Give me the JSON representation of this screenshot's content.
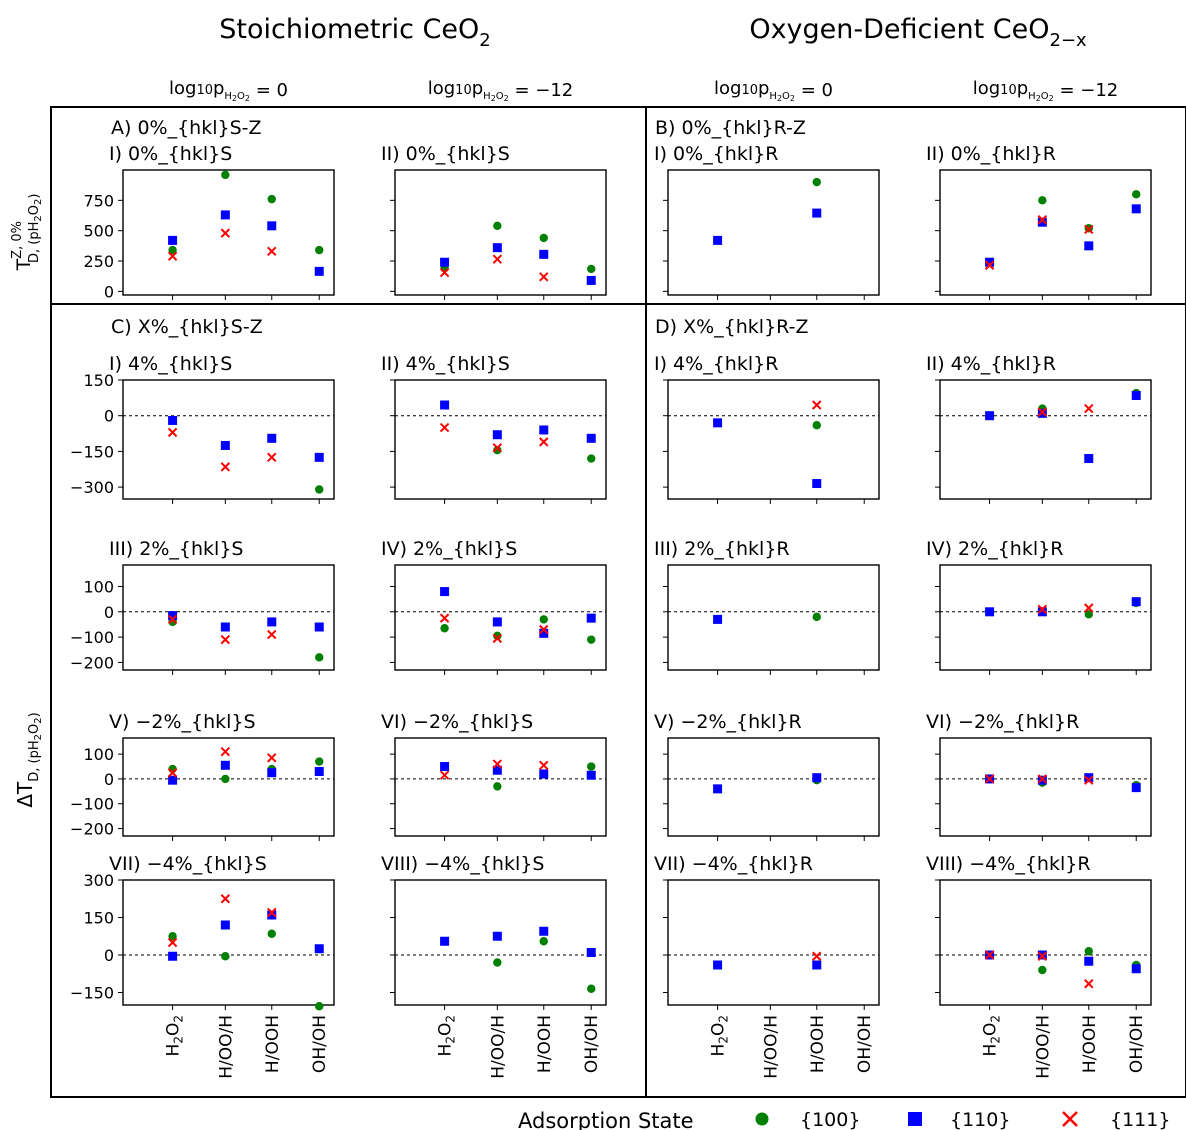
{
  "header": {
    "left": {
      "title_main": "Stoichiometric CeO",
      "title_sub": "2"
    },
    "right": {
      "title_main": "Oxygen-Deficient CeO",
      "title_sub": "2−x"
    }
  },
  "column_headers": [
    {
      "pre": "log",
      "base": "10",
      "p": "p",
      "sub": "H",
      "sub2": "2",
      "sub3": "O",
      "sub4": "2",
      "eq": " = 0"
    },
    {
      "pre": "log",
      "base": "10",
      "p": "p",
      "sub": "H",
      "sub2": "2",
      "sub3": "O",
      "sub4": "2",
      "eq": " = −12"
    },
    {
      "pre": "log",
      "base": "10",
      "p": "p",
      "sub": "H",
      "sub2": "2",
      "sub3": "O",
      "sub4": "2",
      "eq": " = 0"
    },
    {
      "pre": "log",
      "base": "10",
      "p": "p",
      "sub": "H",
      "sub2": "2",
      "sub3": "O",
      "sub4": "2",
      "eq": " = −12"
    }
  ],
  "section_labels": {
    "A": "A) 0%_{hkl}S-Z",
    "B": "B) 0%_{hkl}R-Z",
    "C": "C) X%_{hkl}S-Z",
    "D": "D) X%_{hkl}R-Z"
  },
  "ylabels": {
    "top": {
      "main": "T",
      "sup": "Z, 0%",
      "sub": "D, (pH",
      "sub2": "2",
      "sub3": "O",
      "sub4": "2",
      "close": ")"
    },
    "bottom": {
      "main": "ΔT",
      "sub": "D, (pH",
      "sub2": "2",
      "sub3": "O",
      "sub4": "2",
      "close": ")"
    }
  },
  "categories": [
    "H2O2",
    "H/OO/H",
    "H/OOH",
    "OH/OH"
  ],
  "legend": {
    "title": "Adsorption State",
    "items": [
      {
        "label": "{100}",
        "color": "#008000",
        "marker": "circle"
      },
      {
        "label": "{110}",
        "color": "#0000ff",
        "marker": "square"
      },
      {
        "label": "{111}",
        "color": "#ff0000",
        "marker": "x"
      }
    ]
  },
  "colors": {
    "s100": "#008000",
    "s110": "#0000ff",
    "s111": "#ff0000"
  },
  "chart_data": [
    {
      "type": "scatter",
      "title": "I) 0%_{hkl}S",
      "yticks": [
        0,
        250,
        500,
        750
      ],
      "ylim": [
        -30,
        1000
      ],
      "series": [
        {
          "name": "{100}",
          "values": [
            340,
            960,
            760,
            340
          ]
        },
        {
          "name": "{110}",
          "values": [
            420,
            630,
            540,
            165
          ]
        },
        {
          "name": "{111}",
          "values": [
            290,
            480,
            330,
            null
          ]
        }
      ]
    },
    {
      "type": "scatter",
      "title": "II) 0%_{hkl}S",
      "yticks": [],
      "ylim": [
        -30,
        1000
      ],
      "series": [
        {
          "name": "{100}",
          "values": [
            190,
            540,
            440,
            185
          ]
        },
        {
          "name": "{110}",
          "values": [
            240,
            360,
            305,
            90
          ]
        },
        {
          "name": "{111}",
          "values": [
            155,
            265,
            120,
            null
          ]
        }
      ]
    },
    {
      "type": "scatter",
      "title": "I) 0%_{hkl}R",
      "yticks": [],
      "ylim": [
        -30,
        1000
      ],
      "series": [
        {
          "name": "{100}",
          "values": [
            null,
            null,
            900,
            null
          ]
        },
        {
          "name": "{110}",
          "values": [
            420,
            null,
            645,
            null
          ]
        },
        {
          "name": "{111}",
          "values": [
            null,
            null,
            null,
            null
          ]
        }
      ]
    },
    {
      "type": "scatter",
      "title": "II) 0%_{hkl}R",
      "yticks": [],
      "ylim": [
        -30,
        1000
      ],
      "series": [
        {
          "name": "{100}",
          "values": [
            null,
            750,
            520,
            800
          ]
        },
        {
          "name": "{110}",
          "values": [
            240,
            570,
            375,
            680
          ]
        },
        {
          "name": "{111}",
          "values": [
            215,
            590,
            510,
            null
          ]
        }
      ]
    },
    {
      "type": "scatter",
      "title": "I)  4%_{hkl}S",
      "yticks": [
        -300,
        -150,
        0,
        150
      ],
      "ylim": [
        -350,
        150
      ],
      "series": [
        {
          "name": "{100}",
          "values": [
            null,
            null,
            null,
            -310
          ]
        },
        {
          "name": "{110}",
          "values": [
            -20,
            -125,
            -95,
            -175
          ]
        },
        {
          "name": "{111}",
          "values": [
            -70,
            -215,
            -175,
            null
          ]
        }
      ]
    },
    {
      "type": "scatter",
      "title": "II) 4%_{hkl}S",
      "yticks": [],
      "ylim": [
        -350,
        150
      ],
      "series": [
        {
          "name": "{100}",
          "values": [
            null,
            -145,
            null,
            -180
          ]
        },
        {
          "name": "{110}",
          "values": [
            45,
            -80,
            -60,
            -95
          ]
        },
        {
          "name": "{111}",
          "values": [
            -50,
            -135,
            -110,
            null
          ]
        }
      ]
    },
    {
      "type": "scatter",
      "title": "I)  4%_{hkl}R",
      "yticks": [],
      "ylim": [
        -350,
        150
      ],
      "series": [
        {
          "name": "{100}",
          "values": [
            null,
            null,
            -40,
            null
          ]
        },
        {
          "name": "{110}",
          "values": [
            -30,
            null,
            -285,
            null
          ]
        },
        {
          "name": "{111}",
          "values": [
            null,
            null,
            45,
            null
          ]
        }
      ]
    },
    {
      "type": "scatter",
      "title": "II) 4%_{hkl}R",
      "yticks": [],
      "ylim": [
        -350,
        150
      ],
      "series": [
        {
          "name": "{100}",
          "values": [
            null,
            30,
            null,
            95
          ]
        },
        {
          "name": "{110}",
          "values": [
            0,
            10,
            -180,
            85
          ]
        },
        {
          "name": "{111}",
          "values": [
            null,
            15,
            30,
            null
          ]
        }
      ]
    },
    {
      "type": "scatter",
      "title": "III) 2%_{hkl}S",
      "yticks": [
        -200,
        -100,
        0,
        100
      ],
      "ylim": [
        -230,
        185
      ],
      "series": [
        {
          "name": "{100}",
          "values": [
            -40,
            null,
            -40,
            -180
          ]
        },
        {
          "name": "{110}",
          "values": [
            -15,
            -60,
            -40,
            -60
          ]
        },
        {
          "name": "{111}",
          "values": [
            -30,
            -110,
            -90,
            null
          ]
        }
      ]
    },
    {
      "type": "scatter",
      "title": "IV) 2%_{hkl}S",
      "yticks": [],
      "ylim": [
        -230,
        185
      ],
      "series": [
        {
          "name": "{100}",
          "values": [
            -65,
            -95,
            -30,
            -110
          ]
        },
        {
          "name": "{110}",
          "values": [
            80,
            -40,
            -85,
            -25
          ]
        },
        {
          "name": "{111}",
          "values": [
            -25,
            -105,
            -70,
            null
          ]
        }
      ]
    },
    {
      "type": "scatter",
      "title": "III) 2%_{hkl}R",
      "yticks": [],
      "ylim": [
        -230,
        185
      ],
      "series": [
        {
          "name": "{100}",
          "values": [
            null,
            null,
            -20,
            null
          ]
        },
        {
          "name": "{110}",
          "values": [
            -30,
            null,
            null,
            null
          ]
        },
        {
          "name": "{111}",
          "values": [
            null,
            null,
            null,
            null
          ]
        }
      ]
    },
    {
      "type": "scatter",
      "title": "IV) 2%_{hkl}R",
      "yticks": [],
      "ylim": [
        -230,
        185
      ],
      "series": [
        {
          "name": "{100}",
          "values": [
            null,
            0,
            -10,
            35
          ]
        },
        {
          "name": "{110}",
          "values": [
            0,
            0,
            null,
            40
          ]
        },
        {
          "name": "{111}",
          "values": [
            null,
            10,
            15,
            null
          ]
        }
      ]
    },
    {
      "type": "scatter",
      "title": "V) −2%_{hkl}S",
      "yticks": [
        -200,
        -100,
        0,
        100
      ],
      "ylim": [
        -230,
        165
      ],
      "series": [
        {
          "name": "{100}",
          "values": [
            40,
            0,
            40,
            70
          ]
        },
        {
          "name": "{110}",
          "values": [
            -5,
            55,
            25,
            30
          ]
        },
        {
          "name": "{111}",
          "values": [
            25,
            110,
            85,
            null
          ]
        }
      ]
    },
    {
      "type": "scatter",
      "title": "VI) −2%_{hkl}S",
      "yticks": [],
      "ylim": [
        -230,
        165
      ],
      "series": [
        {
          "name": "{100}",
          "values": [
            null,
            -30,
            null,
            50
          ]
        },
        {
          "name": "{110}",
          "values": [
            50,
            35,
            20,
            15
          ]
        },
        {
          "name": "{111}",
          "values": [
            15,
            60,
            55,
            null
          ]
        }
      ]
    },
    {
      "type": "scatter",
      "title": "V) −2%_{hkl}R",
      "yticks": [],
      "ylim": [
        -230,
        165
      ],
      "series": [
        {
          "name": "{100}",
          "values": [
            null,
            null,
            -5,
            null
          ]
        },
        {
          "name": "{110}",
          "values": [
            -40,
            null,
            5,
            null
          ]
        },
        {
          "name": "{111}",
          "values": [
            null,
            null,
            null,
            null
          ]
        }
      ]
    },
    {
      "type": "scatter",
      "title": "VI) −2%_{hkl}R",
      "yticks": [],
      "ylim": [
        -230,
        165
      ],
      "series": [
        {
          "name": "{100}",
          "values": [
            null,
            -15,
            null,
            -25
          ]
        },
        {
          "name": "{110}",
          "values": [
            0,
            -5,
            5,
            -35
          ]
        },
        {
          "name": "{111}",
          "values": [
            0,
            0,
            -5,
            null
          ]
        }
      ]
    },
    {
      "type": "scatter",
      "title": "VII) −4%_{hkl}S",
      "yticks": [
        -150,
        0,
        150,
        300
      ],
      "ylim": [
        -200,
        300
      ],
      "series": [
        {
          "name": "{100}",
          "values": [
            75,
            -5,
            85,
            -205
          ]
        },
        {
          "name": "{110}",
          "values": [
            -5,
            120,
            160,
            25
          ]
        },
        {
          "name": "{111}",
          "values": [
            50,
            225,
            170,
            null
          ]
        }
      ]
    },
    {
      "type": "scatter",
      "title": "VIII) −4%_{hkl}S",
      "yticks": [],
      "ylim": [
        -200,
        300
      ],
      "series": [
        {
          "name": "{100}",
          "values": [
            null,
            -30,
            55,
            -135
          ]
        },
        {
          "name": "{110}",
          "values": [
            55,
            75,
            95,
            10
          ]
        },
        {
          "name": "{111}",
          "values": [
            null,
            null,
            null,
            null
          ]
        }
      ]
    },
    {
      "type": "scatter",
      "title": "VII) −4%_{hkl}R",
      "yticks": [],
      "ylim": [
        -200,
        300
      ],
      "series": [
        {
          "name": "{100}",
          "values": [
            null,
            null,
            null,
            null
          ]
        },
        {
          "name": "{110}",
          "values": [
            -40,
            null,
            -40,
            null
          ]
        },
        {
          "name": "{111}",
          "values": [
            null,
            null,
            -5,
            null
          ]
        }
      ]
    },
    {
      "type": "scatter",
      "title": "VIII) −4%_{hkl}R",
      "yticks": [],
      "ylim": [
        -200,
        300
      ],
      "series": [
        {
          "name": "{100}",
          "values": [
            null,
            -60,
            15,
            -40
          ]
        },
        {
          "name": "{110}",
          "values": [
            0,
            0,
            -25,
            -55
          ]
        },
        {
          "name": "{111}",
          "values": [
            0,
            -5,
            -115,
            null
          ]
        }
      ]
    }
  ]
}
